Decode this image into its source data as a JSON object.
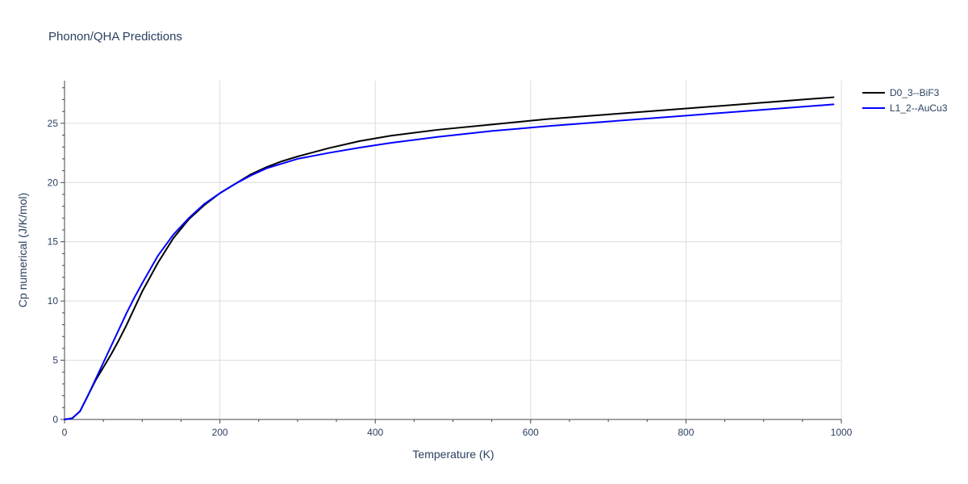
{
  "chart_data": {
    "type": "line",
    "title": "Phonon/QHA Predictions",
    "xlabel": "Temperature (K)",
    "ylabel": "Cp numerical (J/K/mol)",
    "xlim": [
      0,
      1000
    ],
    "ylim": [
      0,
      28.6
    ],
    "x_ticks": [
      0,
      200,
      400,
      600,
      800,
      1000
    ],
    "y_ticks": [
      0,
      5,
      10,
      15,
      20,
      25
    ],
    "x_tick_labels": [
      "0",
      "200",
      "400",
      "600",
      "800",
      "1000"
    ],
    "y_tick_labels": [
      "0",
      "5",
      "10",
      "15",
      "20",
      "25"
    ],
    "x_minor_ticks": [
      50,
      100,
      150,
      250,
      300,
      350,
      450,
      500,
      550,
      650,
      700,
      750,
      850,
      900,
      950
    ],
    "grid": true,
    "legend_position": "top-right",
    "series": [
      {
        "name": "D0_3--BiF3",
        "color": "#000000",
        "x": [
          0,
          10,
          20,
          30,
          40,
          50,
          60,
          70,
          80,
          90,
          100,
          120,
          140,
          160,
          180,
          200,
          220,
          240,
          260,
          280,
          300,
          340,
          380,
          420,
          480,
          550,
          620,
          700,
          800,
          900,
          990
        ],
        "y": [
          0,
          0.1,
          0.7,
          2.0,
          3.3,
          4.4,
          5.5,
          6.7,
          8.0,
          9.4,
          10.8,
          13.2,
          15.3,
          16.9,
          18.1,
          19.1,
          19.9,
          20.7,
          21.3,
          21.8,
          22.2,
          22.9,
          23.5,
          23.95,
          24.45,
          24.9,
          25.35,
          25.75,
          26.25,
          26.75,
          27.2
        ]
      },
      {
        "name": "L1_2--AuCu3",
        "color": "#0000ff",
        "x": [
          0,
          10,
          20,
          30,
          40,
          50,
          60,
          70,
          80,
          90,
          100,
          120,
          140,
          160,
          180,
          200,
          220,
          240,
          260,
          280,
          300,
          340,
          380,
          420,
          480,
          550,
          620,
          700,
          800,
          900,
          990
        ],
        "y": [
          0,
          0.1,
          0.7,
          2.0,
          3.4,
          4.8,
          6.2,
          7.6,
          9.0,
          10.3,
          11.5,
          13.8,
          15.6,
          17.0,
          18.2,
          19.1,
          19.9,
          20.6,
          21.2,
          21.6,
          22.0,
          22.5,
          22.95,
          23.35,
          23.85,
          24.35,
          24.75,
          25.15,
          25.65,
          26.15,
          26.6
        ]
      }
    ]
  }
}
